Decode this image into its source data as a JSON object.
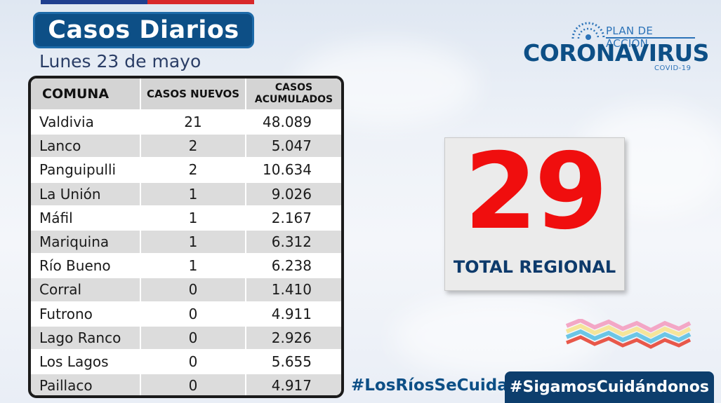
{
  "header": {
    "title": "Casos Diarios",
    "date": "Lunes 23 de mayo"
  },
  "colors": {
    "brand_blue": "#0d4f86",
    "accent_red": "#f00e0e",
    "dark_navy": "#0d3e6d"
  },
  "logo": {
    "plan": "PLAN DE ACCIÓN",
    "name": "CORONAVIRUS",
    "sub": "COVID-19"
  },
  "table": {
    "headers": {
      "comuna": "COMUNA",
      "nuevos": "CASOS NUEVOS",
      "acumulados_1": "CASOS",
      "acumulados_2": "ACUMULADOS"
    },
    "rows": [
      {
        "comuna": "Valdivia",
        "nuevos": "21",
        "acumulados": "48.089"
      },
      {
        "comuna": "Lanco",
        "nuevos": "2",
        "acumulados": "5.047"
      },
      {
        "comuna": "Panguipulli",
        "nuevos": "2",
        "acumulados": "10.634"
      },
      {
        "comuna": "La Unión",
        "nuevos": "1",
        "acumulados": "9.026"
      },
      {
        "comuna": "Máfil",
        "nuevos": "1",
        "acumulados": "2.167"
      },
      {
        "comuna": "Mariquina",
        "nuevos": "1",
        "acumulados": "6.312"
      },
      {
        "comuna": "Río Bueno",
        "nuevos": "1",
        "acumulados": "6.238"
      },
      {
        "comuna": "Corral",
        "nuevos": "0",
        "acumulados": "1.410"
      },
      {
        "comuna": "Futrono",
        "nuevos": "0",
        "acumulados": "4.911"
      },
      {
        "comuna": "Lago Ranco",
        "nuevos": "0",
        "acumulados": "2.926"
      },
      {
        "comuna": "Los Lagos",
        "nuevos": "0",
        "acumulados": "5.655"
      },
      {
        "comuna": "Paillaco",
        "nuevos": "0",
        "acumulados": "4.917"
      }
    ]
  },
  "total": {
    "value": "29",
    "label": "TOTAL REGIONAL"
  },
  "hashtags": {
    "first": "#LosRíosSeCuida",
    "second": "#SigamosCuidándonos"
  }
}
